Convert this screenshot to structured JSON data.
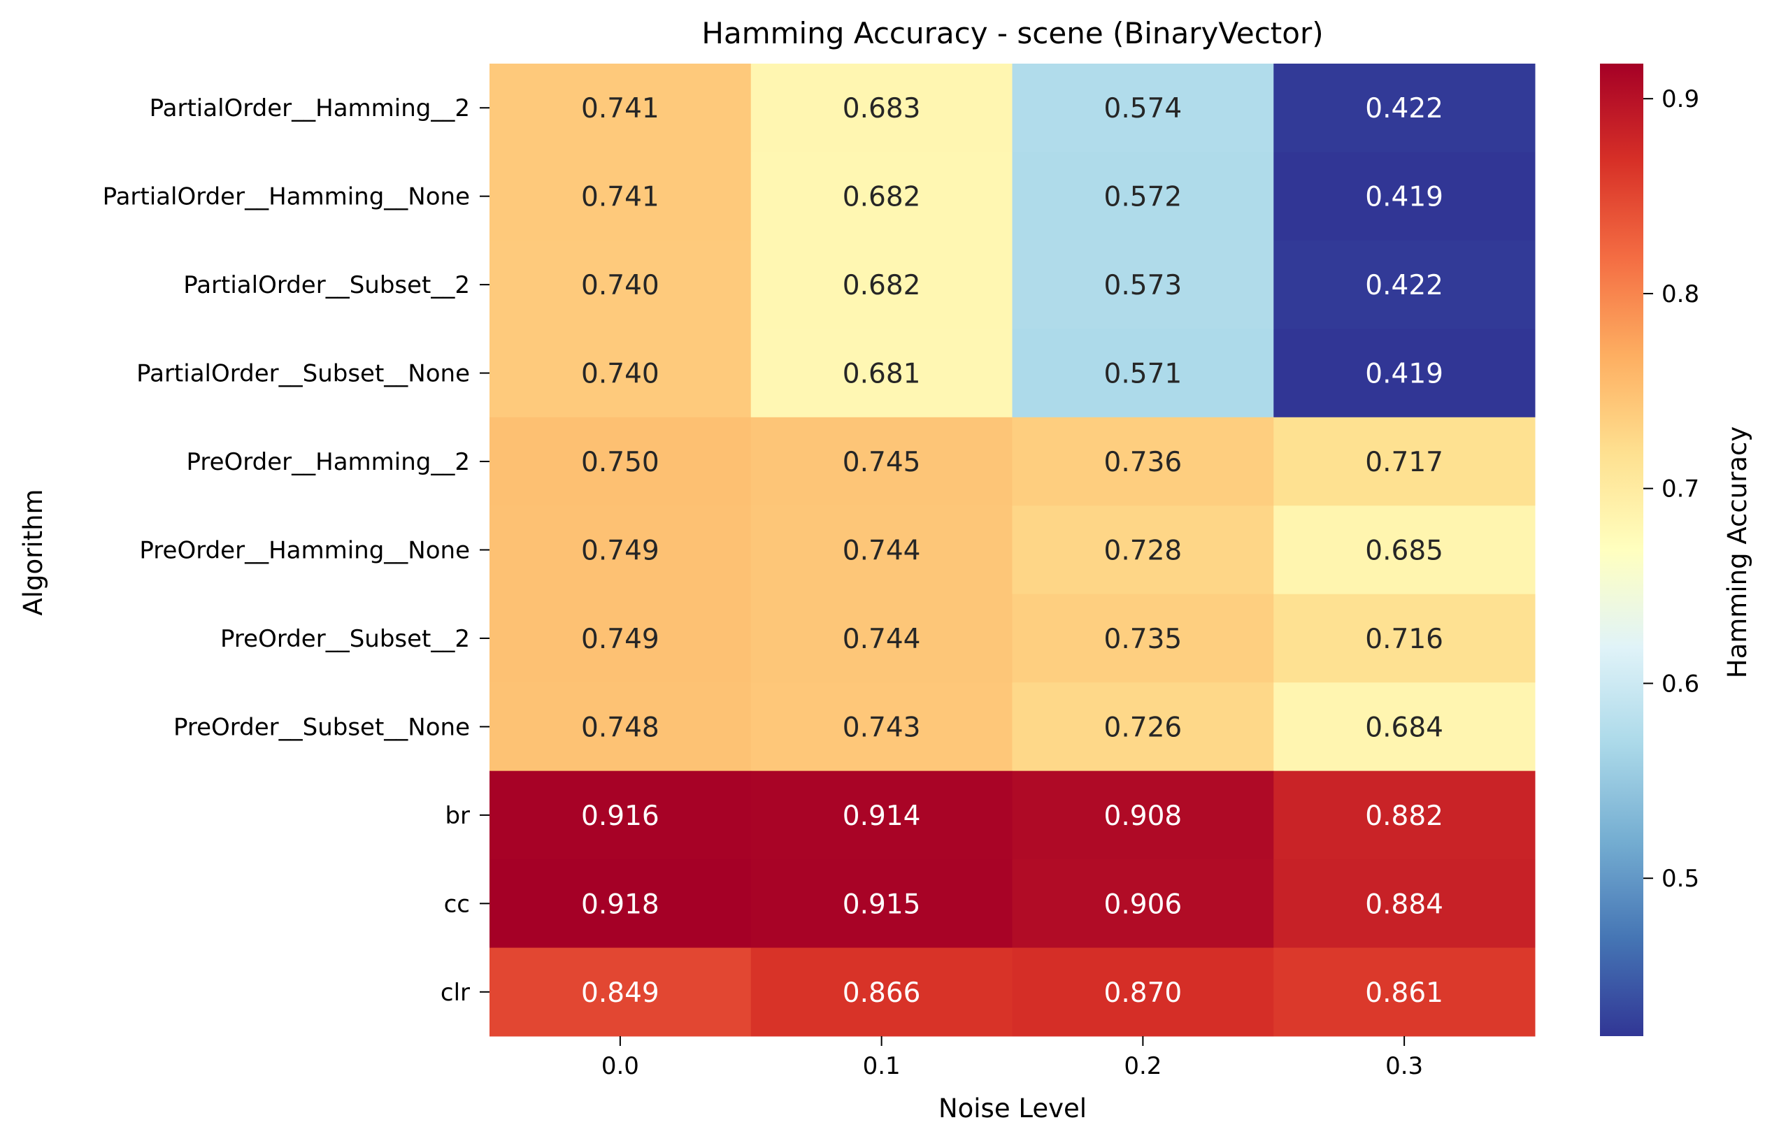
{
  "chart_data": {
    "type": "heatmap",
    "title": "Hamming Accuracy - scene (BinaryVector)",
    "xlabel": "Noise Level",
    "ylabel": "Algorithm",
    "x_categories": [
      "0.0",
      "0.1",
      "0.2",
      "0.3"
    ],
    "y_categories": [
      "PartialOrder__Hamming__2",
      "PartialOrder__Hamming__None",
      "PartialOrder__Subset__2",
      "PartialOrder__Subset__None",
      "PreOrder__Hamming__2",
      "PreOrder__Hamming__None",
      "PreOrder__Subset__2",
      "PreOrder__Subset__None",
      "br",
      "cc",
      "clr"
    ],
    "values": [
      [
        0.741,
        0.683,
        0.574,
        0.422
      ],
      [
        0.741,
        0.682,
        0.572,
        0.419
      ],
      [
        0.74,
        0.682,
        0.573,
        0.422
      ],
      [
        0.74,
        0.681,
        0.571,
        0.419
      ],
      [
        0.75,
        0.745,
        0.736,
        0.717
      ],
      [
        0.749,
        0.744,
        0.728,
        0.685
      ],
      [
        0.749,
        0.744,
        0.735,
        0.716
      ],
      [
        0.748,
        0.743,
        0.726,
        0.684
      ],
      [
        0.916,
        0.914,
        0.908,
        0.882
      ],
      [
        0.918,
        0.915,
        0.906,
        0.884
      ],
      [
        0.849,
        0.866,
        0.87,
        0.861
      ]
    ],
    "colorbar": {
      "label": "Hamming Accuracy",
      "colormap": "RdYlBu_r",
      "vmin": 0.419,
      "vmax": 0.918,
      "ticks": [
        "0.5",
        "0.6",
        "0.7",
        "0.8",
        "0.9"
      ]
    },
    "annotation_colors": {
      "dark": "#262626",
      "light": "#ffffff"
    }
  }
}
